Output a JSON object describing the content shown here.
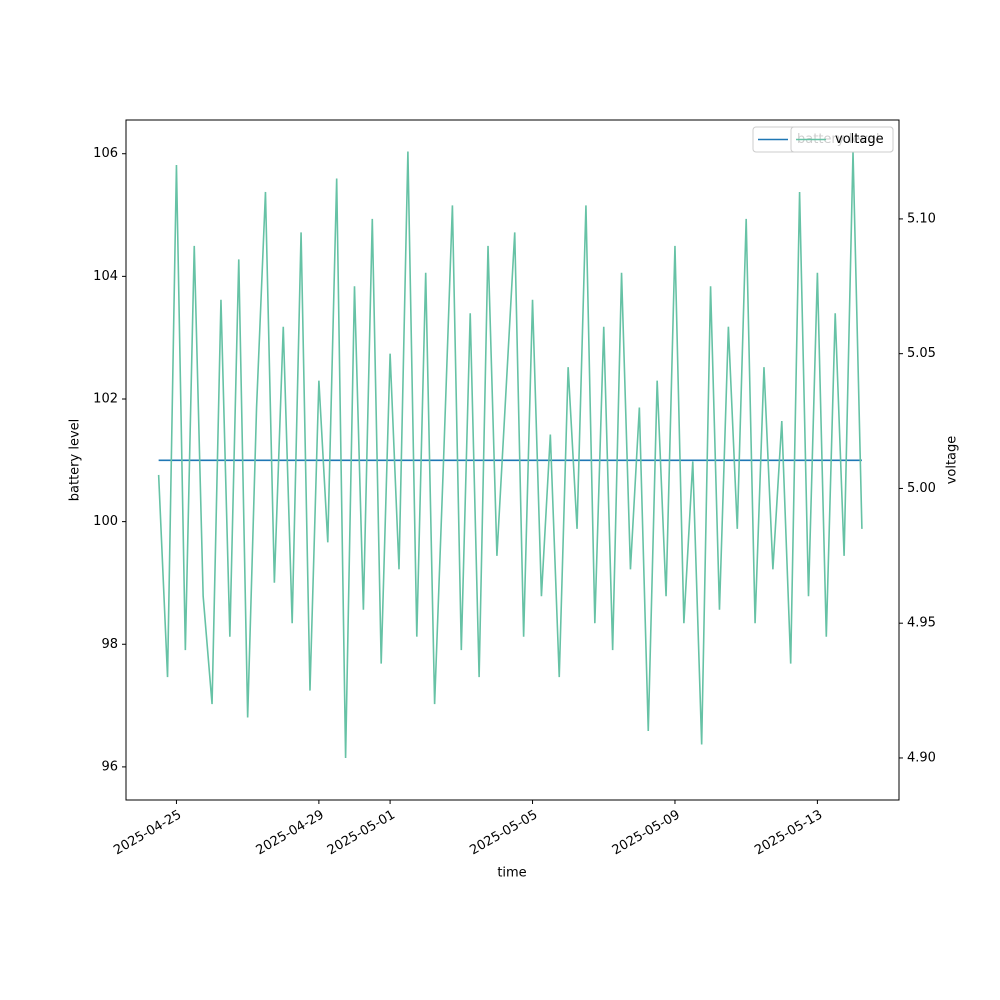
{
  "chart_data": {
    "type": "line",
    "xlabel": "time",
    "ylabel": "battery level",
    "y2label": "voltage",
    "x": [
      "2025-04-24T12:00",
      "2025-04-24T18:00",
      "2025-04-25T00:00",
      "2025-04-25T06:00",
      "2025-04-25T12:00",
      "2025-04-25T18:00",
      "2025-04-26T00:00",
      "2025-04-26T06:00",
      "2025-04-26T12:00",
      "2025-04-26T18:00",
      "2025-04-27T00:00",
      "2025-04-27T06:00",
      "2025-04-27T12:00",
      "2025-04-27T18:00",
      "2025-04-28T00:00",
      "2025-04-28T06:00",
      "2025-04-28T12:00",
      "2025-04-28T18:00",
      "2025-04-29T00:00",
      "2025-04-29T06:00",
      "2025-04-29T12:00",
      "2025-04-29T18:00",
      "2025-04-30T00:00",
      "2025-04-30T06:00",
      "2025-04-30T12:00",
      "2025-04-30T18:00",
      "2025-05-01T00:00",
      "2025-05-01T06:00",
      "2025-05-01T12:00",
      "2025-05-01T18:00",
      "2025-05-02T00:00",
      "2025-05-02T06:00",
      "2025-05-02T12:00",
      "2025-05-02T18:00",
      "2025-05-03T00:00",
      "2025-05-03T06:00",
      "2025-05-03T12:00",
      "2025-05-03T18:00",
      "2025-05-04T00:00",
      "2025-05-04T06:00",
      "2025-05-04T12:00",
      "2025-05-04T18:00",
      "2025-05-05T00:00",
      "2025-05-05T06:00",
      "2025-05-05T12:00",
      "2025-05-05T18:00",
      "2025-05-06T00:00",
      "2025-05-06T06:00",
      "2025-05-06T12:00",
      "2025-05-06T18:00",
      "2025-05-07T00:00",
      "2025-05-07T06:00",
      "2025-05-07T12:00",
      "2025-05-07T18:00",
      "2025-05-08T00:00",
      "2025-05-08T06:00",
      "2025-05-08T12:00",
      "2025-05-08T18:00",
      "2025-05-09T00:00",
      "2025-05-09T06:00",
      "2025-05-09T12:00",
      "2025-05-09T18:00",
      "2025-05-10T00:00",
      "2025-05-10T06:00",
      "2025-05-10T12:00",
      "2025-05-10T18:00",
      "2025-05-11T00:00",
      "2025-05-11T06:00",
      "2025-05-11T12:00",
      "2025-05-11T18:00",
      "2025-05-12T00:00",
      "2025-05-12T06:00",
      "2025-05-12T12:00",
      "2025-05-12T18:00",
      "2025-05-13T00:00",
      "2025-05-13T06:00",
      "2025-05-13T12:00",
      "2025-05-13T18:00",
      "2025-05-14T00:00",
      "2025-05-14T06:00"
    ],
    "series": [
      {
        "name": "battery level",
        "color": "#1f77b4",
        "values": [
          101,
          101,
          101,
          101,
          101,
          101,
          101,
          101,
          101,
          101,
          101,
          101,
          101,
          101,
          101,
          101,
          101,
          101,
          101,
          101,
          101,
          101,
          101,
          101,
          101,
          101,
          101,
          101,
          101,
          101,
          101,
          101,
          101,
          101,
          101,
          101,
          101,
          101,
          101,
          101,
          101,
          101,
          101,
          101,
          101,
          101,
          101,
          101,
          101,
          101,
          101,
          101,
          101,
          101,
          101,
          101,
          101,
          101,
          101,
          101,
          101,
          101,
          101,
          101,
          101,
          101,
          101,
          101,
          101,
          101,
          101,
          101,
          101,
          101,
          101,
          101,
          101,
          101,
          101,
          101
        ]
      },
      {
        "name": "voltage",
        "color": "#66c2a5",
        "axis": "y2",
        "values": [
          5.005,
          4.93,
          5.12,
          4.94,
          5.09,
          4.96,
          4.92,
          5.07,
          4.945,
          5.085,
          4.915,
          5.03,
          5.11,
          4.965,
          5.06,
          4.95,
          5.095,
          4.925,
          5.04,
          4.98,
          5.115,
          4.9,
          5.075,
          4.955,
          5.1,
          4.935,
          5.05,
          4.97,
          5.125,
          4.945,
          5.08,
          4.92,
          5.01,
          5.105,
          4.94,
          5.065,
          4.93,
          5.09,
          4.975,
          5.035,
          5.095,
          4.945,
          5.07,
          4.96,
          5.02,
          4.93,
          5.045,
          4.985,
          5.105,
          4.95,
          5.06,
          4.94,
          5.08,
          4.97,
          5.03,
          4.91,
          5.04,
          4.96,
          5.09,
          4.95,
          5.01,
          4.905,
          5.075,
          4.955,
          5.06,
          4.985,
          5.1,
          4.95,
          5.045,
          4.97,
          5.025,
          4.935,
          5.11,
          4.96,
          5.08,
          4.945,
          5.065,
          4.975,
          5.125,
          4.985
        ]
      }
    ],
    "xlim": [
      "2025-04-23T14:00",
      "2025-05-15T07:00"
    ],
    "xticks": [
      "2025-04-25",
      "2025-04-29",
      "2025-05-01",
      "2025-05-05",
      "2025-05-09",
      "2025-05-13"
    ],
    "ylim": [
      95.46,
      106.55
    ],
    "yticks": [
      96,
      98,
      100,
      102,
      104,
      106
    ],
    "y2lim": [
      4.8844,
      5.1367
    ],
    "y2ticks": [
      {
        "value": 4.9,
        "label": "4.90"
      },
      4.95,
      {
        "value": 5.0,
        "label": "5.00"
      },
      5.05,
      {
        "value": 5.1,
        "label": "5.10"
      }
    ],
    "legend": "upper right",
    "grid": false
  }
}
